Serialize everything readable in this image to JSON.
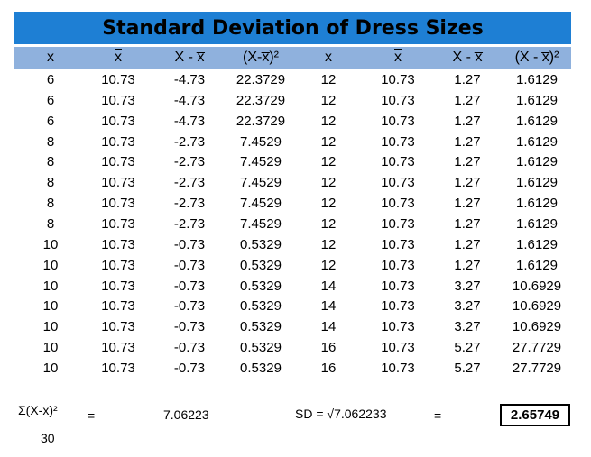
{
  "title": "Standard Deviation of Dress Sizes",
  "headers": [
    {
      "text": "x",
      "bar": false
    },
    {
      "text": "x",
      "bar": true
    },
    {
      "text": "X - x̅",
      "bar": false
    },
    {
      "text": "(X-x̅)²",
      "bar": false
    },
    {
      "text": "x",
      "bar": false
    },
    {
      "text": "x",
      "bar": true
    },
    {
      "text": "X - x̅",
      "bar": false
    },
    {
      "text": "(X - x̅)²",
      "bar": false
    }
  ],
  "rows": [
    [
      "6",
      "10.73",
      "-4.73",
      "22.3729",
      "12",
      "10.73",
      "1.27",
      "1.6129"
    ],
    [
      "6",
      "10.73",
      "-4.73",
      "22.3729",
      "12",
      "10.73",
      "1.27",
      "1.6129"
    ],
    [
      "6",
      "10.73",
      "-4.73",
      "22.3729",
      "12",
      "10.73",
      "1.27",
      "1.6129"
    ],
    [
      "8",
      "10.73",
      "-2.73",
      "7.4529",
      "12",
      "10.73",
      "1.27",
      "1.6129"
    ],
    [
      "8",
      "10.73",
      "-2.73",
      "7.4529",
      "12",
      "10.73",
      "1.27",
      "1.6129"
    ],
    [
      "8",
      "10.73",
      "-2.73",
      "7.4529",
      "12",
      "10.73",
      "1.27",
      "1.6129"
    ],
    [
      "8",
      "10.73",
      "-2.73",
      "7.4529",
      "12",
      "10.73",
      "1.27",
      "1.6129"
    ],
    [
      "8",
      "10.73",
      "-2.73",
      "7.4529",
      "12",
      "10.73",
      "1.27",
      "1.6129"
    ],
    [
      "10",
      "10.73",
      "-0.73",
      "0.5329",
      "12",
      "10.73",
      "1.27",
      "1.6129"
    ],
    [
      "10",
      "10.73",
      "-0.73",
      "0.5329",
      "12",
      "10.73",
      "1.27",
      "1.6129"
    ],
    [
      "10",
      "10.73",
      "-0.73",
      "0.5329",
      "14",
      "10.73",
      "3.27",
      "10.6929"
    ],
    [
      "10",
      "10.73",
      "-0.73",
      "0.5329",
      "14",
      "10.73",
      "3.27",
      "10.6929"
    ],
    [
      "10",
      "10.73",
      "-0.73",
      "0.5329",
      "14",
      "10.73",
      "3.27",
      "10.6929"
    ],
    [
      "10",
      "10.73",
      "-0.73",
      "0.5329",
      "16",
      "10.73",
      "5.27",
      "27.7729"
    ],
    [
      "10",
      "10.73",
      "-0.73",
      "0.5329",
      "16",
      "10.73",
      "5.27",
      "27.7729"
    ]
  ],
  "footer": {
    "numerator": "Σ(X-x̅)²",
    "denominator": "30",
    "equals1": "=",
    "variance": "7.06223",
    "sd_label": "SD = √7.062233",
    "equals2": "=",
    "sd_value": "2.65749"
  },
  "colors": {
    "title_bg": "#1e7fd4",
    "header_bg": "#8fb1dd"
  }
}
